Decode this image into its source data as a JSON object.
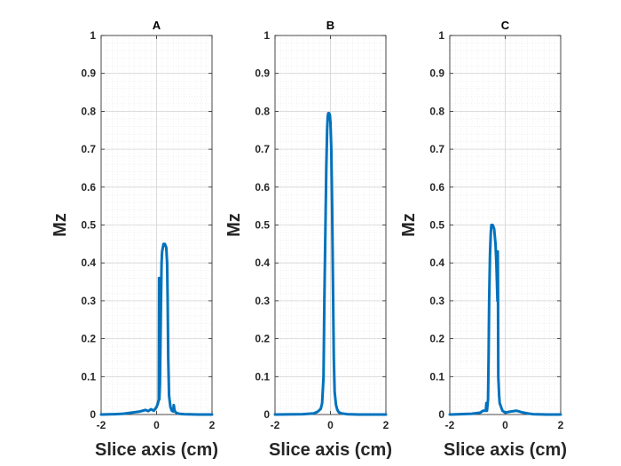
{
  "chart_data": [
    {
      "type": "line",
      "title": "A",
      "xlabel": "Slice axis (cm)",
      "ylabel": "Mz",
      "xlim": [
        -2,
        2
      ],
      "ylim": [
        0,
        1
      ],
      "grid": true,
      "line_color": "#0072BD",
      "x_ticks": [
        -2,
        0,
        2
      ],
      "x_tick_labels": [
        "-2",
        "0",
        "2"
      ],
      "y_ticks": [
        0,
        0.1,
        0.2,
        0.3,
        0.4,
        0.5,
        0.6,
        0.7,
        0.8,
        0.9,
        1
      ],
      "y_tick_labels": [
        "0",
        "0.1",
        "0.2",
        "0.3",
        "0.4",
        "0.5",
        "0.6",
        "0.7",
        "0.8",
        "0.9",
        "1"
      ],
      "series": [
        {
          "name": "Mz",
          "x": [
            -2,
            -1.5,
            -1.2,
            -0.9,
            -0.6,
            -0.4,
            -0.3,
            -0.2,
            -0.1,
            0,
            0.05,
            0.08,
            0.09,
            0.1,
            0.12,
            0.15,
            0.18,
            0.2,
            0.25,
            0.3,
            0.35,
            0.38,
            0.4,
            0.42,
            0.45,
            0.5,
            0.55,
            0.6,
            0.62,
            0.65,
            0.7,
            0.8,
            1.0,
            1.5,
            2
          ],
          "y": [
            0,
            0.001,
            0.002,
            0.005,
            0.008,
            0.012,
            0.009,
            0.014,
            0.01,
            0.02,
            0.03,
            0.04,
            0.36,
            0.04,
            0.08,
            0.25,
            0.4,
            0.43,
            0.45,
            0.45,
            0.44,
            0.4,
            0.3,
            0.15,
            0.05,
            0.02,
            0.01,
            0.008,
            0.025,
            0.01,
            0.005,
            0.002,
            0.001,
            0,
            0
          ]
        }
      ]
    },
    {
      "type": "line",
      "title": "B",
      "xlabel": "Slice axis (cm)",
      "ylabel": "Mz",
      "xlim": [
        -2,
        2
      ],
      "ylim": [
        0,
        1
      ],
      "grid": true,
      "line_color": "#0072BD",
      "x_ticks": [
        -2,
        0,
        2
      ],
      "x_tick_labels": [
        "-2",
        "0",
        "2"
      ],
      "y_ticks": [
        0,
        0.1,
        0.2,
        0.3,
        0.4,
        0.5,
        0.6,
        0.7,
        0.8,
        0.9,
        1
      ],
      "y_tick_labels": [
        "0",
        "0.1",
        "0.2",
        "0.3",
        "0.4",
        "0.5",
        "0.6",
        "0.7",
        "0.8",
        "0.9",
        "1"
      ],
      "series": [
        {
          "name": "Mz",
          "x": [
            -2,
            -1.0,
            -0.6,
            -0.45,
            -0.35,
            -0.3,
            -0.25,
            -0.22,
            -0.18,
            -0.15,
            -0.12,
            -0.1,
            -0.08,
            -0.05,
            -0.02,
            0,
            0.03,
            0.06,
            0.09,
            0.12,
            0.15,
            0.2,
            0.25,
            0.3,
            0.4,
            0.6,
            1.0,
            2
          ],
          "y": [
            0,
            0.001,
            0.003,
            0.008,
            0.015,
            0.03,
            0.1,
            0.3,
            0.5,
            0.65,
            0.75,
            0.785,
            0.795,
            0.795,
            0.79,
            0.77,
            0.7,
            0.55,
            0.35,
            0.15,
            0.06,
            0.025,
            0.012,
            0.006,
            0.003,
            0.001,
            0,
            0
          ]
        }
      ]
    },
    {
      "type": "line",
      "title": "C",
      "xlabel": "Slice axis (cm)",
      "ylabel": "Mz",
      "xlim": [
        -2,
        2
      ],
      "ylim": [
        0,
        1
      ],
      "grid": true,
      "line_color": "#0072BD",
      "x_ticks": [
        -2,
        0,
        2
      ],
      "x_tick_labels": [
        "-2",
        "0",
        "2"
      ],
      "y_ticks": [
        0,
        0.1,
        0.2,
        0.3,
        0.4,
        0.5,
        0.6,
        0.7,
        0.8,
        0.9,
        1
      ],
      "y_tick_labels": [
        "0",
        "0.1",
        "0.2",
        "0.3",
        "0.4",
        "0.5",
        "0.6",
        "0.7",
        "0.8",
        "0.9",
        "1"
      ],
      "series": [
        {
          "name": "Mz",
          "x": [
            -2,
            -1.2,
            -0.9,
            -0.8,
            -0.75,
            -0.7,
            -0.68,
            -0.66,
            -0.62,
            -0.6,
            -0.58,
            -0.55,
            -0.52,
            -0.5,
            -0.45,
            -0.4,
            -0.35,
            -0.32,
            -0.3,
            -0.28,
            -0.27,
            -0.26,
            -0.25,
            -0.22,
            -0.2,
            -0.15,
            -0.1,
            0,
            0.2,
            0.4,
            0.6,
            0.8,
            1.0,
            1.5,
            2
          ],
          "y": [
            0,
            0.002,
            0.005,
            0.01,
            0.01,
            0.01,
            0.03,
            0.01,
            0.04,
            0.15,
            0.3,
            0.42,
            0.48,
            0.5,
            0.5,
            0.49,
            0.45,
            0.4,
            0.35,
            0.3,
            0.43,
            0.3,
            0.1,
            0.05,
            0.03,
            0.02,
            0.01,
            0.005,
            0.008,
            0.01,
            0.006,
            0.003,
            0.001,
            0,
            0
          ]
        }
      ]
    }
  ]
}
